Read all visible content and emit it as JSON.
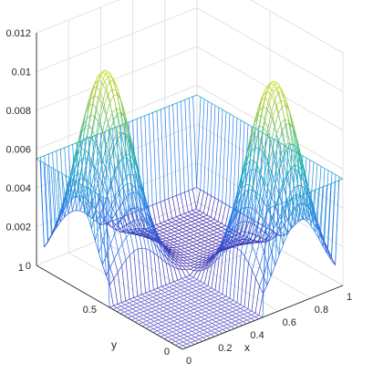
{
  "chart_data": {
    "type": "surface-mesh",
    "title": "",
    "xlabel": "x",
    "ylabel": "y",
    "zlabel": "",
    "xlim": [
      0,
      1
    ],
    "ylim": [
      0,
      1
    ],
    "zlim": [
      0,
      0.012
    ],
    "x_ticks": [
      "0",
      "0.2",
      "0.4",
      "0.6",
      "0.8",
      "1"
    ],
    "y_ticks": [
      "0",
      "0.5",
      "1"
    ],
    "z_ticks": [
      "0",
      "0.002",
      "0.004",
      "0.006",
      "0.008",
      "0.01",
      "0.012"
    ],
    "grid": true,
    "colormap": "parula",
    "mesh_resolution": 40,
    "peaks": [
      {
        "x": 0.2,
        "y": 0.75,
        "z": 0.0105
      },
      {
        "x": 0.75,
        "y": 0.2,
        "z": 0.0105
      }
    ],
    "zero_region": {
      "x": [
        0,
        0.5
      ],
      "y": [
        0,
        0.5
      ]
    },
    "colors": {
      "mesh_low": "#3e26a8",
      "mesh_mid": "#14b1b5",
      "mesh_high": "#f9fb0e",
      "flat_mesh": "#5a55c8"
    }
  }
}
